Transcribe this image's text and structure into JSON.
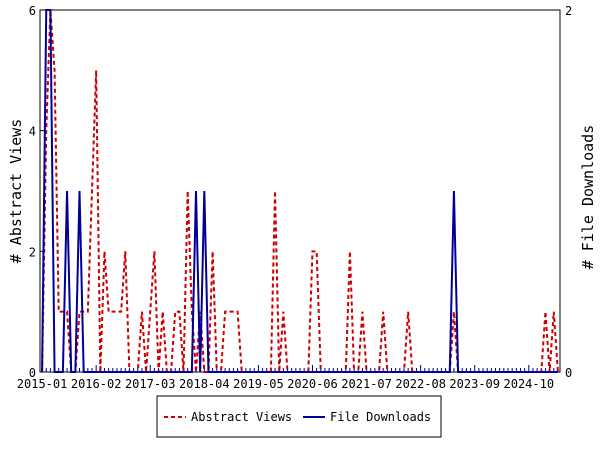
{
  "chart_data": {
    "type": "line",
    "title": "",
    "ylabel": "# Abstract Views",
    "y2label": "# File Downloads",
    "xlabel": "",
    "ylim": [
      0,
      6
    ],
    "y2lim": [
      0,
      2
    ],
    "yticks": [
      "0",
      "2",
      "4",
      "6"
    ],
    "y2ticks": [
      "0",
      "2"
    ],
    "x_tick_labels": [
      "2015-01",
      "2016-02",
      "2017-03",
      "2018-04",
      "2019-05",
      "2020-06",
      "2021-07",
      "2022-08",
      "2023-09",
      "2024-10"
    ],
    "x_range_months": [
      "2015-01",
      "2025-05"
    ],
    "legend_position": "bottom",
    "colors": {
      "abstract": "#cc0000",
      "downloads": "#000099"
    },
    "series": [
      {
        "name": "Abstract Views",
        "axis": "left",
        "style": "dashed",
        "points": [
          [
            "2015-01",
            0
          ],
          [
            "2015-02",
            4
          ],
          [
            "2015-03",
            6
          ],
          [
            "2015-04",
            5
          ],
          [
            "2015-05",
            1
          ],
          [
            "2015-06",
            1
          ],
          [
            "2015-07",
            1
          ],
          [
            "2015-08",
            0
          ],
          [
            "2015-09",
            0
          ],
          [
            "2015-10",
            1
          ],
          [
            "2015-11",
            1
          ],
          [
            "2015-12",
            1
          ],
          [
            "2016-01",
            3
          ],
          [
            "2016-02",
            5
          ],
          [
            "2016-03",
            0
          ],
          [
            "2016-04",
            2
          ],
          [
            "2016-05",
            1
          ],
          [
            "2016-06",
            1
          ],
          [
            "2016-07",
            1
          ],
          [
            "2016-08",
            1
          ],
          [
            "2016-09",
            2
          ],
          [
            "2016-10",
            0
          ],
          [
            "2016-11",
            0
          ],
          [
            "2016-12",
            0
          ],
          [
            "2017-01",
            1
          ],
          [
            "2017-02",
            0
          ],
          [
            "2017-03",
            1
          ],
          [
            "2017-04",
            2
          ],
          [
            "2017-05",
            0
          ],
          [
            "2017-06",
            1
          ],
          [
            "2017-07",
            0
          ],
          [
            "2017-08",
            0
          ],
          [
            "2017-09",
            1
          ],
          [
            "2017-10",
            1
          ],
          [
            "2017-11",
            0
          ],
          [
            "2017-12",
            3
          ],
          [
            "2018-01",
            1
          ],
          [
            "2018-02",
            0
          ],
          [
            "2018-03",
            1
          ],
          [
            "2018-04",
            0
          ],
          [
            "2018-05",
            0
          ],
          [
            "2018-06",
            2
          ],
          [
            "2018-07",
            0
          ],
          [
            "2018-08",
            0
          ],
          [
            "2018-09",
            1
          ],
          [
            "2018-10",
            1
          ],
          [
            "2018-11",
            1
          ],
          [
            "2018-12",
            1
          ],
          [
            "2019-01",
            0
          ],
          [
            "2019-02",
            0
          ],
          [
            "2019-03",
            0
          ],
          [
            "2019-04",
            0
          ],
          [
            "2019-05",
            0
          ],
          [
            "2019-06",
            0
          ],
          [
            "2019-07",
            0
          ],
          [
            "2019-08",
            0
          ],
          [
            "2019-09",
            3
          ],
          [
            "2019-10",
            0
          ],
          [
            "2019-11",
            1
          ],
          [
            "2019-12",
            0
          ],
          [
            "2020-01",
            0
          ],
          [
            "2020-02",
            0
          ],
          [
            "2020-03",
            0
          ],
          [
            "2020-04",
            0
          ],
          [
            "2020-05",
            0
          ],
          [
            "2020-06",
            2
          ],
          [
            "2020-07",
            2
          ],
          [
            "2020-08",
            0
          ],
          [
            "2020-09",
            0
          ],
          [
            "2020-10",
            0
          ],
          [
            "2020-11",
            0
          ],
          [
            "2020-12",
            0
          ],
          [
            "2021-01",
            0
          ],
          [
            "2021-02",
            0
          ],
          [
            "2021-03",
            2
          ],
          [
            "2021-04",
            0
          ],
          [
            "2021-05",
            0
          ],
          [
            "2021-06",
            1
          ],
          [
            "2021-07",
            0
          ],
          [
            "2021-08",
            0
          ],
          [
            "2021-09",
            0
          ],
          [
            "2021-10",
            0
          ],
          [
            "2021-11",
            1
          ],
          [
            "2021-12",
            0
          ],
          [
            "2022-01",
            0
          ],
          [
            "2022-02",
            0
          ],
          [
            "2022-03",
            0
          ],
          [
            "2022-04",
            0
          ],
          [
            "2022-05",
            1
          ],
          [
            "2022-06",
            0
          ],
          [
            "2022-07",
            0
          ],
          [
            "2022-08",
            0
          ],
          [
            "2022-09",
            0
          ],
          [
            "2022-10",
            0
          ],
          [
            "2022-11",
            0
          ],
          [
            "2022-12",
            0
          ],
          [
            "2023-01",
            0
          ],
          [
            "2023-02",
            0
          ],
          [
            "2023-03",
            0
          ],
          [
            "2023-04",
            1
          ],
          [
            "2023-05",
            0
          ],
          [
            "2023-06",
            0
          ],
          [
            "2023-07",
            0
          ],
          [
            "2023-08",
            0
          ],
          [
            "2023-09",
            0
          ],
          [
            "2023-10",
            0
          ],
          [
            "2023-11",
            0
          ],
          [
            "2023-12",
            0
          ],
          [
            "2024-01",
            0
          ],
          [
            "2024-02",
            0
          ],
          [
            "2024-03",
            0
          ],
          [
            "2024-04",
            0
          ],
          [
            "2024-05",
            0
          ],
          [
            "2024-06",
            0
          ],
          [
            "2024-07",
            0
          ],
          [
            "2024-08",
            0
          ],
          [
            "2024-09",
            0
          ],
          [
            "2024-10",
            0
          ],
          [
            "2024-11",
            0
          ],
          [
            "2024-12",
            0
          ],
          [
            "2025-01",
            0
          ],
          [
            "2025-02",
            1
          ],
          [
            "2025-03",
            0
          ],
          [
            "2025-04",
            1
          ],
          [
            "2025-05",
            0
          ]
        ]
      },
      {
        "name": "File Downloads",
        "axis": "right",
        "style": "solid",
        "points": [
          [
            "2015-01",
            0
          ],
          [
            "2015-02",
            2
          ],
          [
            "2015-03",
            2
          ],
          [
            "2015-04",
            0
          ],
          [
            "2015-05",
            0
          ],
          [
            "2015-06",
            0
          ],
          [
            "2015-07",
            1
          ],
          [
            "2015-08",
            0
          ],
          [
            "2015-09",
            0
          ],
          [
            "2015-10",
            1
          ],
          [
            "2015-11",
            0
          ],
          [
            "2015-12",
            0
          ],
          [
            "2016-01",
            0
          ],
          [
            "2016-02",
            0
          ],
          [
            "2016-03",
            0
          ],
          [
            "2016-04",
            0
          ],
          [
            "2016-05",
            0
          ],
          [
            "2016-06",
            0
          ],
          [
            "2016-07",
            0
          ],
          [
            "2016-08",
            0
          ],
          [
            "2016-09",
            0
          ],
          [
            "2016-10",
            0
          ],
          [
            "2016-11",
            0
          ],
          [
            "2016-12",
            0
          ],
          [
            "2017-01",
            0
          ],
          [
            "2017-02",
            0
          ],
          [
            "2017-03",
            0
          ],
          [
            "2017-04",
            0
          ],
          [
            "2017-05",
            0
          ],
          [
            "2017-06",
            0
          ],
          [
            "2017-07",
            0
          ],
          [
            "2017-08",
            0
          ],
          [
            "2017-09",
            0
          ],
          [
            "2017-10",
            0
          ],
          [
            "2017-11",
            0
          ],
          [
            "2017-12",
            0
          ],
          [
            "2018-01",
            0
          ],
          [
            "2018-02",
            1
          ],
          [
            "2018-03",
            0
          ],
          [
            "2018-04",
            1
          ],
          [
            "2018-05",
            0
          ],
          [
            "2018-06",
            0
          ],
          [
            "2018-07",
            0
          ],
          [
            "2018-08",
            0
          ],
          [
            "2018-09",
            0
          ],
          [
            "2018-10",
            0
          ],
          [
            "2018-11",
            0
          ],
          [
            "2018-12",
            0
          ],
          [
            "2019-01",
            0
          ],
          [
            "2019-02",
            0
          ],
          [
            "2019-03",
            0
          ],
          [
            "2019-04",
            0
          ],
          [
            "2019-05",
            0
          ],
          [
            "2019-06",
            0
          ],
          [
            "2019-07",
            0
          ],
          [
            "2019-08",
            0
          ],
          [
            "2019-09",
            0
          ],
          [
            "2019-10",
            0
          ],
          [
            "2019-11",
            0
          ],
          [
            "2019-12",
            0
          ],
          [
            "2020-01",
            0
          ],
          [
            "2020-02",
            0
          ],
          [
            "2020-03",
            0
          ],
          [
            "2020-04",
            0
          ],
          [
            "2020-05",
            0
          ],
          [
            "2020-06",
            0
          ],
          [
            "2020-07",
            0
          ],
          [
            "2020-08",
            0
          ],
          [
            "2020-09",
            0
          ],
          [
            "2020-10",
            0
          ],
          [
            "2020-11",
            0
          ],
          [
            "2020-12",
            0
          ],
          [
            "2021-01",
            0
          ],
          [
            "2021-02",
            0
          ],
          [
            "2021-03",
            0
          ],
          [
            "2021-04",
            0
          ],
          [
            "2021-05",
            0
          ],
          [
            "2021-06",
            0
          ],
          [
            "2021-07",
            0
          ],
          [
            "2021-08",
            0
          ],
          [
            "2021-09",
            0
          ],
          [
            "2021-10",
            0
          ],
          [
            "2021-11",
            0
          ],
          [
            "2021-12",
            0
          ],
          [
            "2022-01",
            0
          ],
          [
            "2022-02",
            0
          ],
          [
            "2022-03",
            0
          ],
          [
            "2022-04",
            0
          ],
          [
            "2022-05",
            0
          ],
          [
            "2022-06",
            0
          ],
          [
            "2022-07",
            0
          ],
          [
            "2022-08",
            0
          ],
          [
            "2022-09",
            0
          ],
          [
            "2022-10",
            0
          ],
          [
            "2022-11",
            0
          ],
          [
            "2022-12",
            0
          ],
          [
            "2023-01",
            0
          ],
          [
            "2023-02",
            0
          ],
          [
            "2023-03",
            0
          ],
          [
            "2023-04",
            1
          ],
          [
            "2023-05",
            0
          ],
          [
            "2023-06",
            0
          ],
          [
            "2023-07",
            0
          ],
          [
            "2023-08",
            0
          ],
          [
            "2023-09",
            0
          ],
          [
            "2023-10",
            0
          ],
          [
            "2023-11",
            0
          ],
          [
            "2023-12",
            0
          ],
          [
            "2024-01",
            0
          ],
          [
            "2024-02",
            0
          ],
          [
            "2024-03",
            0
          ],
          [
            "2024-04",
            0
          ],
          [
            "2024-05",
            0
          ],
          [
            "2024-06",
            0
          ],
          [
            "2024-07",
            0
          ],
          [
            "2024-08",
            0
          ],
          [
            "2024-09",
            0
          ],
          [
            "2024-10",
            0
          ],
          [
            "2024-11",
            0
          ],
          [
            "2024-12",
            0
          ],
          [
            "2025-01",
            0
          ],
          [
            "2025-02",
            0
          ],
          [
            "2025-03",
            0
          ],
          [
            "2025-04",
            0
          ],
          [
            "2025-05",
            0
          ]
        ]
      }
    ]
  }
}
